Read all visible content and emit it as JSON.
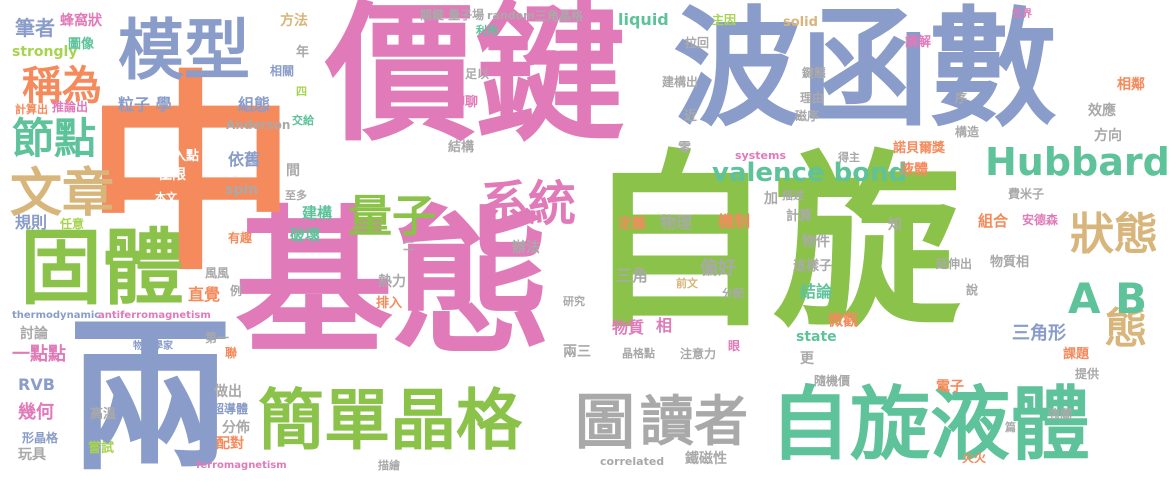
{
  "palette": {
    "green": "#8bc34a",
    "blue": "#8a9cc9",
    "pink": "#e07ab9",
    "orange": "#f58a5c",
    "teal": "#5ec29a",
    "tan": "#d8b57a",
    "gray": "#a9a9a9",
    "lime": "#a7d44f"
  },
  "words": {
    "zixuan": "自旋",
    "jitai": "基態",
    "jiajian": "價鍵",
    "bohanshu": "波函數",
    "zhong": "中",
    "liang": "兩",
    "moxing": "模型",
    "guti": "固體",
    "jiandan_jingge": "簡單晶格",
    "zixuan_yeti": "自旋液體",
    "tu": "圖",
    "duzhe": "讀者",
    "wenzhang": "文章",
    "jiedian": "節點",
    "chengwei": "稱為",
    "liangzi": "量子",
    "xitong": "系統",
    "hubbard": "Hubbard",
    "valence_bond": "valence bond",
    "zhuangtai": "狀態",
    "tai": "態",
    "ab": "A B",
    "bizhe": "筆者",
    "fengwozhuang": "蜂窩狀",
    "strongly": "strongly",
    "tuxiang": "圖像",
    "jisuanchu": "計算出",
    "tuilunchu": "推論出",
    "lizixue": "粒子 學",
    "zutai": "組態",
    "anderson": "Anderson",
    "qierudian": "切入點",
    "yijiu": "依舊",
    "jixian": "極限",
    "benwen": "本文",
    "spin": "spin",
    "guize": "規則",
    "renyi": "任意",
    "jiangou": "建構",
    "pohuai": "破壞",
    "youqu": "有趣",
    "zhijue": "直覺",
    "fangfa": "方法",
    "guanjian_liangzichang": "關鍵 量子場",
    "random": "random",
    "liyong": "利用",
    "sanjiao_jingge": "三角晶格",
    "liquid": "liquid",
    "zhuguo": "主因",
    "solid": "solid",
    "shijie": "世界",
    "lahui": "拉回",
    "jiangoushu": "建構出",
    "jiangjie": "講解",
    "piao": "偏愛",
    "xianglin": "相鄰",
    "xiaoying": "效應",
    "fangxiang": "方向",
    "tichu": "提出",
    "nuobeier": "諾貝爾獎",
    "xiaomo": "費米子",
    "anders": "安德森",
    "wuzhixiang": "物質相",
    "keti": "課題",
    "sanjiaoxing": "三角形",
    "weiguan": "微觀",
    "dingyi": "定義",
    "wuli": "物理",
    "jizhi": "機制",
    "sanjiao": "三角",
    "pianhao": "偏好",
    "wuzhi": "物質",
    "xiang": "相",
    "jielun": "結論",
    "zheyangzi": "這樣子",
    "wujian": "物件",
    "jisuan": "計算",
    "zuhe": "組合",
    "yeti": "液體",
    "state": "state",
    "geng": "更",
    "yanshenchu": "延伸出",
    "dianzi": "電子",
    "qiangguan": "強關",
    "tigong": "提供",
    "correlated": "correlated",
    "tiecixing": "鐵磁性",
    "systems": "systems",
    "zhuyili": "注意力",
    "jinggedian": "晶格點",
    "suijijia": "隨機價",
    "yidiandian": "一點點",
    "rvb": "RVB",
    "jihe": "幾何",
    "xingjingge": "形晶格",
    "wanju": "玩具",
    "changshi": "嘗試",
    "gaowen": "高溫",
    "chaodaoti": "超導體",
    "peidui": "配對",
    "zuochu": "做出",
    "fenbu": "分佈",
    "taolun": "討論",
    "thermodynamic": "thermodynamic",
    "antiferro": "antiferromagnetism",
    "wulixuejia": "物理學家",
    "yanjiu": "研究",
    "liangsan": "兩三",
    "ferromagnetism": "ferromagnetism",
    "miaohui": "描繪",
    "biaohuo": "飽和",
    "reli": "熱力",
    "banfa": "辦法",
    "jiegou": "結構",
    "liaoliao": "聊聊",
    "lingge": "零",
    "er": "二",
    "fengfeng": "風風",
    "li": "例",
    "diyi": "第一",
    "lian": "聯",
    "bu": "佈",
    "zhiduo": "至多",
    "jian": "間",
    "nian": "年",
    "si": "四",
    "jiaowu": "交給",
    "xiangguan": "相關",
    "zugou": "足以",
    "jin": "近",
    "huoji": "火火",
    "pian": "篇",
    "zhidao": "知",
    "jia": "加",
    "gouzao": "構造",
    "lichu": "理由",
    "cixu": "磁序",
    "jiantai": "鍵態",
    "de": "得主",
    "miaoshu": "描述",
    "xu": "序",
    "shuo": "說",
    "qianwen": "前文",
    "fenpei": "分配",
    "yan": "眼",
    "paiyu": "排入",
    "fen": "分"
  }
}
